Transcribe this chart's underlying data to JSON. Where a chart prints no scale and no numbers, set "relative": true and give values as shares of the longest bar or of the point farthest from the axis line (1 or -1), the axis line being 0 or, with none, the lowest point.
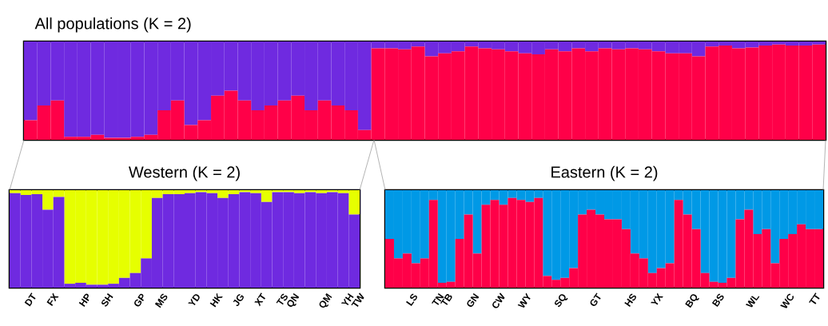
{
  "chart_data": [
    {
      "type": "bar",
      "title": "All populations (K = 2)",
      "stacked": true,
      "relative": true,
      "categories": [
        null,
        null,
        null,
        null,
        null,
        null,
        null,
        null,
        null,
        null,
        null,
        null,
        null,
        null,
        null,
        null,
        null,
        null,
        null,
        null,
        null,
        null,
        null,
        null,
        null,
        null,
        null,
        null,
        null,
        null,
        null,
        null,
        null,
        null,
        null,
        null,
        null,
        null,
        null,
        null,
        null,
        null,
        null,
        null,
        null,
        null,
        null,
        null,
        null,
        null,
        null,
        null,
        null,
        null,
        null,
        null,
        null,
        null,
        null,
        null
      ],
      "series": [
        {
          "color": "#ff0048",
          "values": [
            0.2,
            0.35,
            0.4,
            0.03,
            0.03,
            0.05,
            0.02,
            0.02,
            0.03,
            0.05,
            0.3,
            0.4,
            0.15,
            0.2,
            0.45,
            0.5,
            0.4,
            0.3,
            0.35,
            0.4,
            0.45,
            0.3,
            0.4,
            0.35,
            0.3,
            0.1,
            0.93,
            0.93,
            0.92,
            0.95,
            0.85,
            0.88,
            0.9,
            0.95,
            0.93,
            0.92,
            0.9,
            0.88,
            0.87,
            0.92,
            0.9,
            0.93,
            0.9,
            0.93,
            0.92,
            0.93,
            0.92,
            0.9,
            0.88,
            0.88,
            0.85,
            0.95,
            0.96,
            0.93,
            0.94,
            0.96,
            0.97,
            0.96,
            0.96,
            0.97
          ]
        },
        {
          "color": "#6f2ae0",
          "values": [
            0.8,
            0.65,
            0.6,
            0.97,
            0.97,
            0.95,
            0.98,
            0.98,
            0.97,
            0.95,
            0.7,
            0.6,
            0.85,
            0.8,
            0.55,
            0.5,
            0.6,
            0.7,
            0.65,
            0.6,
            0.55,
            0.7,
            0.6,
            0.65,
            0.7,
            0.9,
            0.07,
            0.07,
            0.08,
            0.05,
            0.15,
            0.12,
            0.1,
            0.05,
            0.07,
            0.08,
            0.1,
            0.12,
            0.13,
            0.08,
            0.1,
            0.07,
            0.1,
            0.07,
            0.08,
            0.07,
            0.08,
            0.1,
            0.12,
            0.12,
            0.15,
            0.05,
            0.04,
            0.07,
            0.06,
            0.04,
            0.03,
            0.04,
            0.04,
            0.03
          ]
        }
      ]
    },
    {
      "type": "bar",
      "title": "Western (K = 2)",
      "stacked": true,
      "relative": true,
      "categories": [
        null,
        "DT",
        null,
        "FX",
        null,
        null,
        "HP",
        null,
        "SH",
        null,
        null,
        "GP",
        null,
        "MS",
        null,
        null,
        "YD",
        null,
        "HK",
        null,
        "JG",
        null,
        "XT",
        null,
        "TS",
        "QN",
        null,
        null,
        "QM",
        null,
        "YH",
        "TW"
      ],
      "series": [
        {
          "color": "#6f2ae0",
          "values": [
            0.97,
            0.95,
            0.96,
            0.8,
            0.93,
            0.04,
            0.05,
            0.03,
            0.03,
            0.04,
            0.1,
            0.15,
            0.3,
            0.92,
            0.96,
            0.96,
            0.97,
            0.98,
            0.97,
            0.92,
            0.96,
            0.98,
            0.97,
            0.88,
            0.98,
            0.98,
            0.97,
            0.98,
            0.97,
            0.98,
            0.97,
            0.75
          ]
        },
        {
          "color": "#e6ff00",
          "values": [
            0.03,
            0.05,
            0.04,
            0.2,
            0.07,
            0.96,
            0.95,
            0.97,
            0.97,
            0.96,
            0.9,
            0.85,
            0.7,
            0.08,
            0.04,
            0.04,
            0.03,
            0.02,
            0.03,
            0.08,
            0.04,
            0.02,
            0.03,
            0.12,
            0.02,
            0.02,
            0.03,
            0.02,
            0.03,
            0.02,
            0.03,
            0.25
          ]
        }
      ]
    },
    {
      "type": "bar",
      "title": "Eastern (K = 2)",
      "stacked": true,
      "relative": true,
      "categories": [
        null,
        null,
        "LS",
        null,
        null,
        "TN",
        "TB",
        null,
        null,
        "GN",
        null,
        null,
        "CW",
        null,
        null,
        "WY",
        null,
        null,
        null,
        "SQ",
        null,
        null,
        null,
        "GT",
        null,
        null,
        null,
        "HS",
        null,
        null,
        "YX",
        null,
        null,
        null,
        "BQ",
        null,
        null,
        "BS",
        null,
        null,
        null,
        "WL",
        null,
        null,
        null,
        "WC",
        null,
        null,
        "TT",
        null
      ],
      "series": [
        {
          "color": "#ff0048",
          "values": [
            0.5,
            0.3,
            0.35,
            0.25,
            0.3,
            0.9,
            0.05,
            0.06,
            0.5,
            0.75,
            0.35,
            0.85,
            0.9,
            0.85,
            0.92,
            0.9,
            0.88,
            0.92,
            0.12,
            0.08,
            0.1,
            0.2,
            0.75,
            0.8,
            0.75,
            0.7,
            0.7,
            0.6,
            0.35,
            0.3,
            0.15,
            0.2,
            0.25,
            0.9,
            0.75,
            0.6,
            0.15,
            0.06,
            0.05,
            0.1,
            0.7,
            0.8,
            0.55,
            0.6,
            0.25,
            0.5,
            0.55,
            0.65,
            0.6,
            0.6
          ]
        },
        {
          "color": "#0099e6",
          "values": [
            0.5,
            0.7,
            0.65,
            0.75,
            0.7,
            0.1,
            0.95,
            0.94,
            0.5,
            0.25,
            0.65,
            0.15,
            0.1,
            0.15,
            0.08,
            0.1,
            0.12,
            0.08,
            0.88,
            0.92,
            0.9,
            0.8,
            0.25,
            0.2,
            0.25,
            0.3,
            0.3,
            0.4,
            0.65,
            0.7,
            0.85,
            0.8,
            0.75,
            0.1,
            0.25,
            0.4,
            0.85,
            0.94,
            0.95,
            0.9,
            0.3,
            0.2,
            0.45,
            0.4,
            0.75,
            0.5,
            0.45,
            0.35,
            0.4,
            0.4
          ]
        }
      ]
    }
  ]
}
